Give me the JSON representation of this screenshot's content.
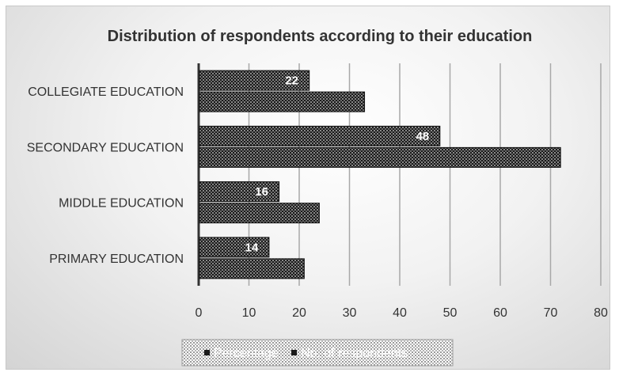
{
  "chart_data": {
    "type": "bar",
    "orientation": "horizontal",
    "title": "Distribution of respondents according to their education",
    "categories": [
      "PRIMARY EDUCATION",
      "MIDDLE EDUCATION",
      "SECONDARY EDUCATION",
      "COLLEGIATE EDUCATION"
    ],
    "series": [
      {
        "name": "Percentage",
        "values": [
          14,
          16,
          48,
          22
        ],
        "data_labels": true
      },
      {
        "name": "No. of respondents",
        "values": [
          21,
          24,
          72,
          33
        ],
        "data_labels": false
      }
    ],
    "xlim": [
      0,
      80
    ],
    "xticks": [
      0,
      10,
      20,
      30,
      40,
      50,
      60,
      70,
      80
    ],
    "grid": "vertical",
    "legend": "bottom",
    "colors": {
      "bar": "#1a1a1a",
      "pattern": "#7a7a7a",
      "gridline": "#a8a8a8",
      "axis": "#333333"
    }
  }
}
